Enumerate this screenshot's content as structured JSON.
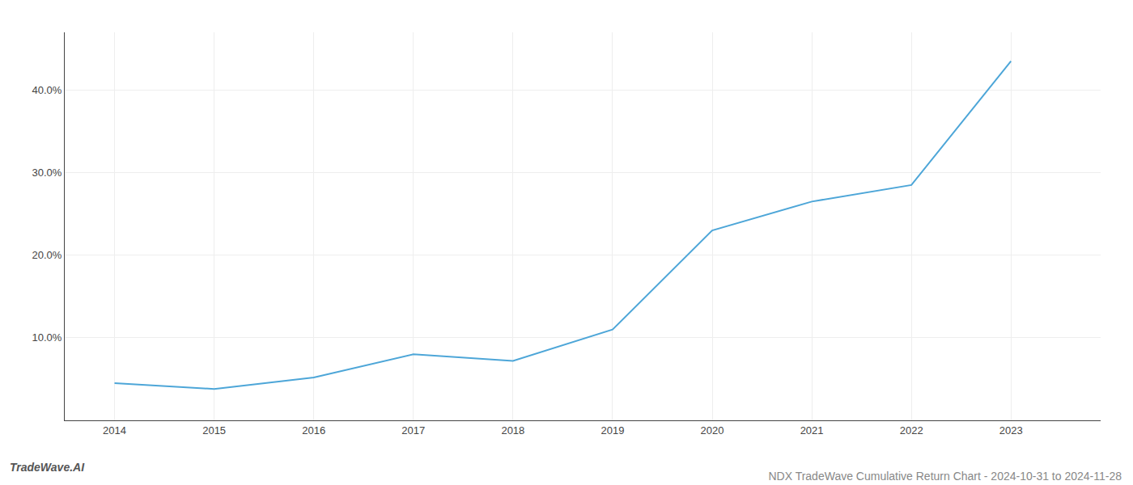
{
  "chart_data": {
    "type": "line",
    "title": "NDX TradeWave Cumulative Return Chart - 2024-10-31 to 2024-11-28",
    "annotations": [
      "TradeWave.AI"
    ],
    "x": [
      2014,
      2015,
      2016,
      2017,
      2018,
      2019,
      2020,
      2021,
      2022,
      2023
    ],
    "values": [
      4.5,
      3.8,
      5.2,
      8.0,
      7.2,
      11.0,
      23.0,
      26.5,
      28.5,
      43.5
    ],
    "color": "#4da6d8",
    "xlim": [
      2013.5,
      2023.9
    ],
    "xticks": [
      2014,
      2015,
      2016,
      2017,
      2018,
      2019,
      2020,
      2021,
      2022,
      2023
    ],
    "ylim": [
      0,
      47
    ],
    "yticks": [
      {
        "value": 10.0,
        "label": "10.0%"
      },
      {
        "value": 20.0,
        "label": "20.0%"
      },
      {
        "value": 30.0,
        "label": "30.0%"
      },
      {
        "value": 40.0,
        "label": "40.0%"
      }
    ],
    "grid": true
  }
}
